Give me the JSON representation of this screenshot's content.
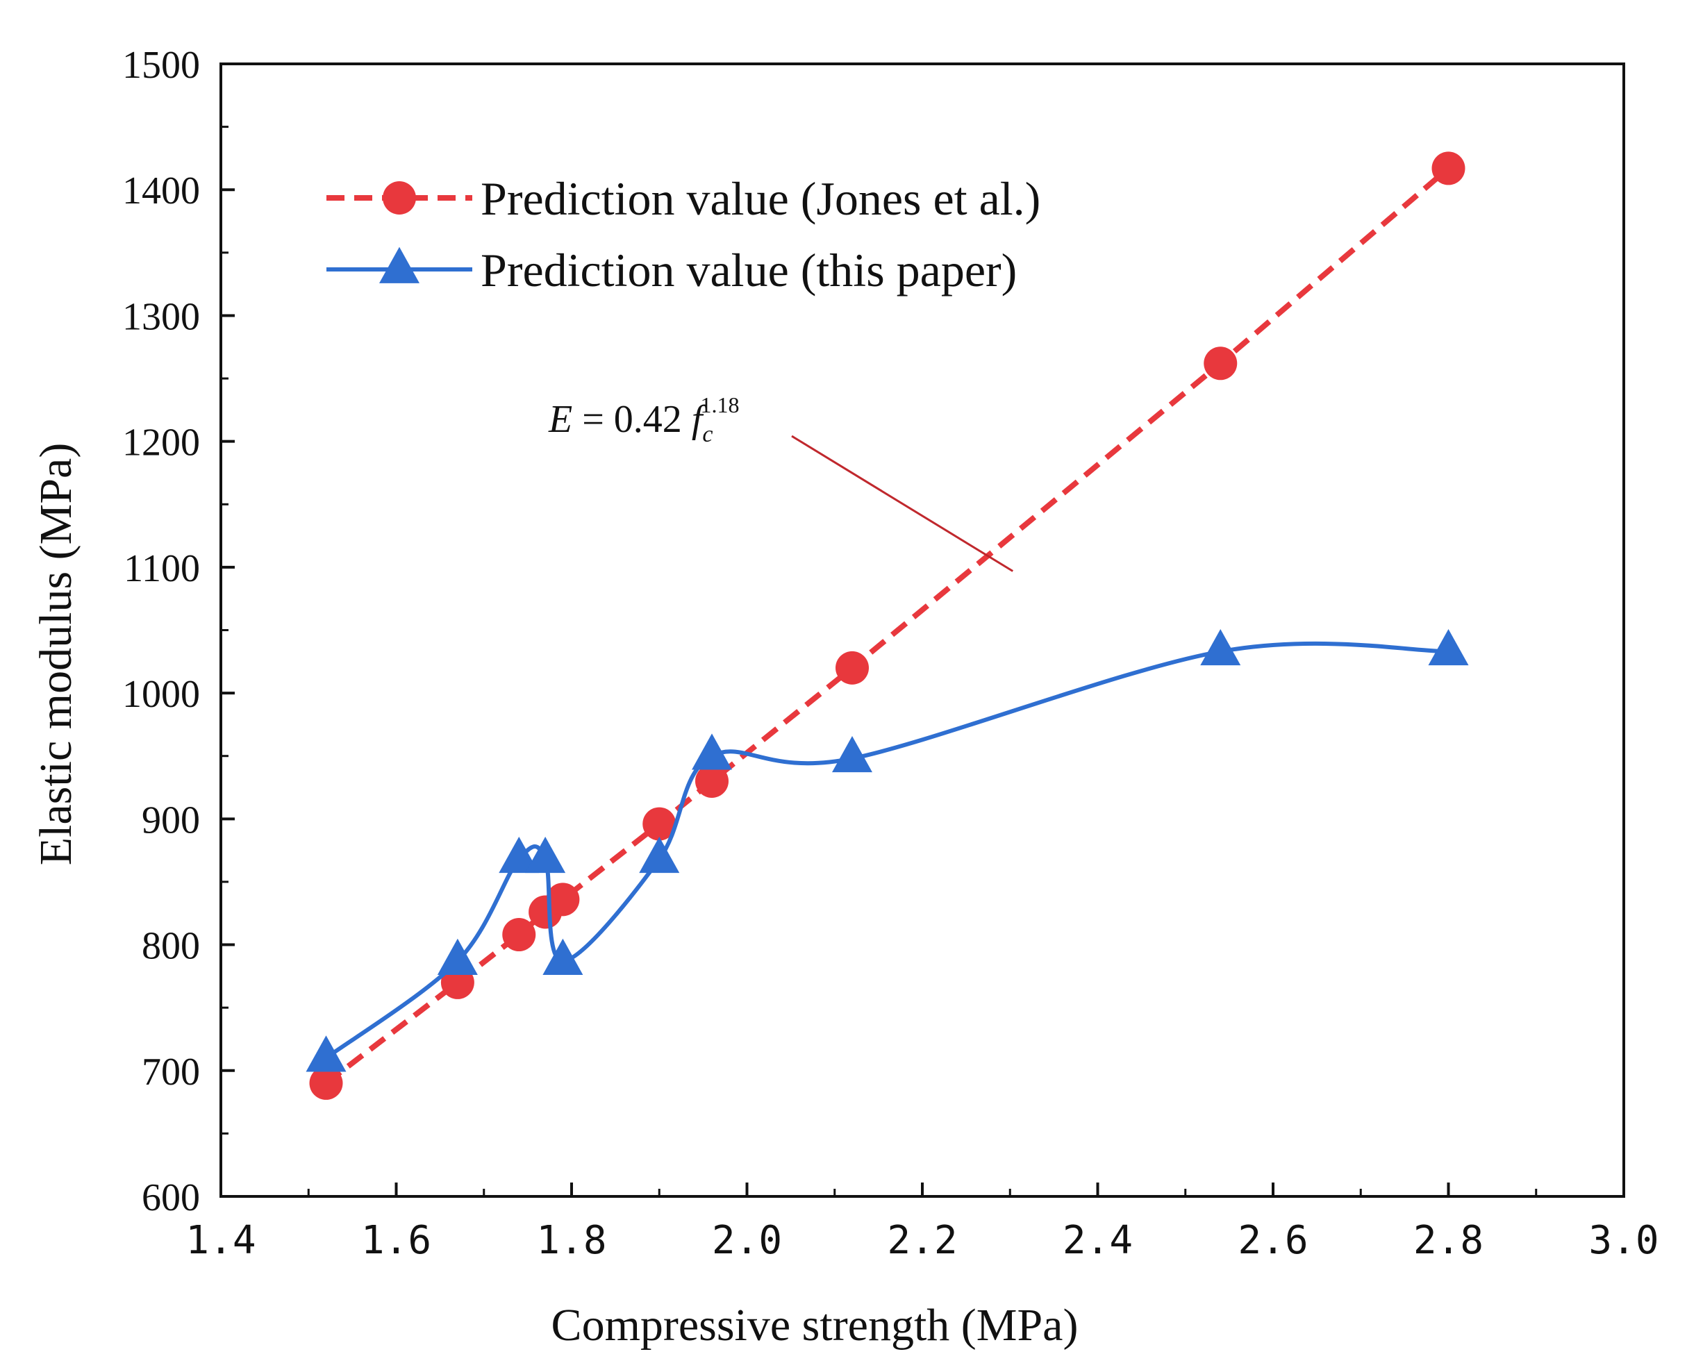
{
  "chart_data": {
    "type": "line",
    "title": "",
    "xlabel": "Compressive strength (MPa)",
    "ylabel": "Elastic modulus (MPa)",
    "xlim": [
      1.4,
      3.0
    ],
    "ylim": [
      600,
      1500
    ],
    "x_ticks": [
      1.4,
      1.6,
      1.8,
      2.0,
      2.2,
      2.4,
      2.6,
      2.8,
      3.0
    ],
    "x_tick_labels": [
      "1.4",
      "1.6",
      "1.8",
      "2.0",
      "2.2",
      "2.4",
      "2.6",
      "2.8",
      "3.0"
    ],
    "y_ticks": [
      600,
      700,
      800,
      900,
      1000,
      1100,
      1200,
      1300,
      1400,
      1500
    ],
    "y_tick_labels": [
      "600",
      "700",
      "800",
      "900",
      "1000",
      "1100",
      "1200",
      "1300",
      "1400",
      "1500"
    ],
    "grid": false,
    "legend_position": "top-left",
    "series": [
      {
        "name": "Prediction value (Jones et al.)",
        "marker": "circle",
        "line_style": "dashed",
        "color": "#e8383d",
        "x": [
          1.52,
          1.67,
          1.74,
          1.77,
          1.79,
          1.9,
          1.96,
          2.12,
          2.54,
          2.8
        ],
        "y": [
          690,
          770,
          808,
          826,
          836,
          896,
          930,
          1020,
          1262,
          1417
        ]
      },
      {
        "name": "Prediction value (this paper)",
        "marker": "triangle",
        "line_style": "smooth",
        "color": "#2f6fd1",
        "x": [
          1.52,
          1.67,
          1.74,
          1.77,
          1.79,
          1.9,
          1.96,
          2.12,
          2.54,
          2.8
        ],
        "y": [
          710,
          787,
          868,
          868,
          787,
          868,
          950,
          948,
          1033,
          1033
        ]
      }
    ],
    "annotation": {
      "prefix": "E = 0.42",
      "variable": "f",
      "subscript": "c",
      "superscript": "1.18",
      "points_to": {
        "x": 2.3,
        "y": 1130
      }
    }
  }
}
